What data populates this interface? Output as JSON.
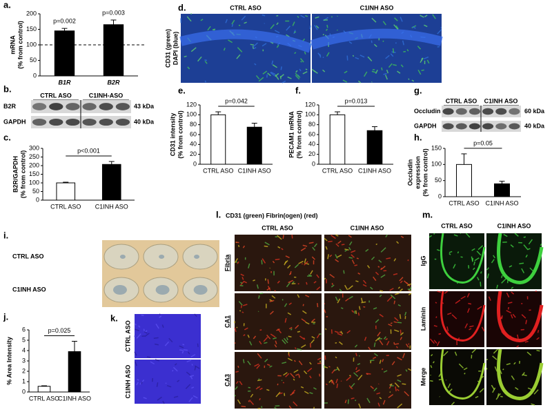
{
  "chart_data": [
    {
      "type": "bar",
      "panel": "a.",
      "ylabel": [
        "mRNA",
        "(% from control)"
      ],
      "categories": [
        "B1R",
        "B2R"
      ],
      "values": [
        145,
        165
      ],
      "errors": [
        8,
        15
      ],
      "colors": [
        "#000000",
        "#000000"
      ],
      "ylim": [
        0,
        200
      ],
      "yticks": [
        0,
        50,
        100,
        150,
        200
      ],
      "reference_line": 100,
      "annotations": [
        "p=0.002",
        "p=0.003"
      ]
    },
    {
      "type": "bar",
      "panel": "c.",
      "ylabel": [
        "B2R/GAPDH",
        "(% from control)"
      ],
      "categories": [
        "CTRL ASO",
        "C1INH ASO"
      ],
      "values": [
        100,
        207
      ],
      "errors": [
        4,
        17
      ],
      "colors": [
        "#ffffff",
        "#000000"
      ],
      "ylim": [
        0,
        300
      ],
      "yticks": [
        0,
        50,
        100,
        150,
        200,
        250,
        300
      ],
      "annotations": [
        "p<0.001"
      ]
    },
    {
      "type": "bar",
      "panel": "e.",
      "ylabel": [
        "CD31 intensity",
        "(% from control)"
      ],
      "categories": [
        "CTRL ASO",
        "C1INH ASO"
      ],
      "values": [
        100,
        75
      ],
      "errors": [
        6,
        8
      ],
      "colors": [
        "#ffffff",
        "#000000"
      ],
      "ylim": [
        0,
        120
      ],
      "yticks": [
        0,
        20,
        40,
        60,
        80,
        100,
        120
      ],
      "annotations": [
        "p=0.042"
      ]
    },
    {
      "type": "bar",
      "panel": "f.",
      "ylabel": [
        "PECAM1 mRNA",
        "(% from control)"
      ],
      "categories": [
        "CTRL ASO",
        "C1INH ASO"
      ],
      "values": [
        100,
        68
      ],
      "errors": [
        6,
        8
      ],
      "colors": [
        "#ffffff",
        "#000000"
      ],
      "ylim": [
        0,
        120
      ],
      "yticks": [
        0,
        20,
        40,
        60,
        80,
        100,
        120
      ],
      "annotations": [
        "p=0.013"
      ]
    },
    {
      "type": "bar",
      "panel": "h.",
      "ylabel": [
        "Occludin",
        "expression",
        "(% from control)"
      ],
      "categories": [
        "CTRL ASO",
        "C1INH ASO"
      ],
      "values": [
        100,
        40
      ],
      "errors": [
        33,
        8
      ],
      "colors": [
        "#ffffff",
        "#000000"
      ],
      "ylim": [
        0,
        150
      ],
      "yticks": [
        0,
        50,
        100,
        150
      ],
      "annotations": [
        "p=0.05"
      ]
    },
    {
      "type": "bar",
      "panel": "j.",
      "ylabel": [
        "% Area Intensity"
      ],
      "categories": [
        "CTRL ASO",
        "C1INH ASO"
      ],
      "values": [
        0.55,
        3.9
      ],
      "errors": [
        0.05,
        1.0
      ],
      "colors": [
        "#ffffff",
        "#000000"
      ],
      "ylim": [
        0,
        6
      ],
      "yticks": [
        0,
        1,
        2,
        3,
        4,
        5,
        6
      ],
      "annotations": [
        "p=0.025"
      ]
    }
  ],
  "blots": [
    {
      "panel": "b.",
      "groups": [
        "CTRL ASO",
        "C1INH-ASO"
      ],
      "rows": [
        "B2R",
        "GAPDH"
      ],
      "sizes": [
        "43 kDa",
        "40 kDa"
      ]
    },
    {
      "panel": "g.",
      "groups": [
        "CTRL ASO",
        "C1INH ASO"
      ],
      "rows": [
        "Occludin",
        "GAPDH"
      ],
      "sizes": [
        "60 kDa",
        "40 kDa"
      ]
    }
  ],
  "images": [
    {
      "panel": "d.",
      "columns": [
        "CTRL ASO",
        "C1INH ASO"
      ],
      "ylabel": [
        "CD31 (green)",
        "DAPI (blue)"
      ]
    },
    {
      "panel": "i.",
      "rows": [
        "CTRL ASO",
        "C1INH ASO"
      ]
    },
    {
      "panel": "k.",
      "rows": [
        "CTRL ASO",
        "C1INH ASO"
      ]
    },
    {
      "panel": "l.",
      "title": "CD31 (green) Fibrin(ogen) (red)",
      "columns": [
        "CTRL ASO",
        "C1INH ASO"
      ],
      "rows": [
        "Fibria",
        "CA1",
        "CA3"
      ]
    },
    {
      "panel": "m.",
      "columns": [
        "CTRL ASO",
        "C1INH ASO"
      ],
      "rows": [
        "IgG",
        "Laminin",
        "Merge"
      ]
    }
  ]
}
